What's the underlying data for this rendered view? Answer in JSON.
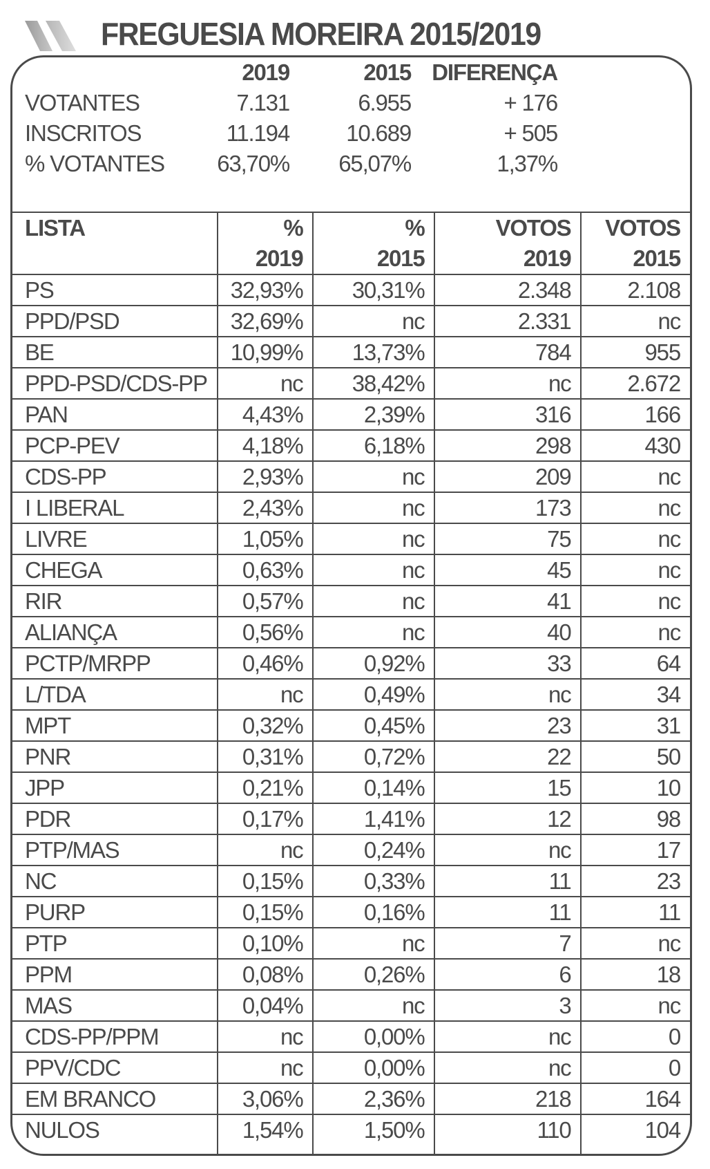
{
  "title": "FREGUESIA MOREIRA 2015/2019",
  "summary": {
    "headers": [
      "2019",
      "2015",
      "DIFERENÇA"
    ],
    "rows": [
      {
        "label": "VOTANTES",
        "v2019": "7.131",
        "v2015": "6.955",
        "diff": "+ 176"
      },
      {
        "label": "INSCRITOS",
        "v2019": "11.194",
        "v2015": "10.689",
        "diff": "+ 505"
      },
      {
        "label": "% VOTANTES",
        "v2019": "63,70%",
        "v2015": "65,07%",
        "diff": "1,37%"
      }
    ]
  },
  "table": {
    "headers": [
      {
        "line1": "LISTA",
        "line2": ""
      },
      {
        "line1": "%",
        "line2": "2019"
      },
      {
        "line1": "%",
        "line2": "2015"
      },
      {
        "line1": "VOTOS",
        "line2": "2019"
      },
      {
        "line1": "VOTOS",
        "line2": "2015"
      }
    ],
    "rows": [
      [
        "PS",
        "32,93%",
        "30,31%",
        "2.348",
        "2.108"
      ],
      [
        "PPD/PSD",
        "32,69%",
        "nc",
        "2.331",
        "nc"
      ],
      [
        "BE",
        "10,99%",
        "13,73%",
        "784",
        "955"
      ],
      [
        "PPD-PSD/CDS-PP",
        "nc",
        "38,42%",
        "nc",
        "2.672"
      ],
      [
        "PAN",
        "4,43%",
        "2,39%",
        "316",
        "166"
      ],
      [
        "PCP-PEV",
        "4,18%",
        "6,18%",
        "298",
        "430"
      ],
      [
        "CDS-PP",
        "2,93%",
        "nc",
        "209",
        "nc"
      ],
      [
        "I LIBERAL",
        "2,43%",
        "nc",
        "173",
        "nc"
      ],
      [
        "LIVRE",
        "1,05%",
        "nc",
        "75",
        "nc"
      ],
      [
        "CHEGA",
        "0,63%",
        "nc",
        "45",
        "nc"
      ],
      [
        "RIR",
        "0,57%",
        "nc",
        "41",
        "nc"
      ],
      [
        "ALIANÇA",
        "0,56%",
        "nc",
        "40",
        "nc"
      ],
      [
        "PCTP/MRPP",
        "0,46%",
        "0,92%",
        "33",
        "64"
      ],
      [
        "L/TDA",
        "nc",
        "0,49%",
        "nc",
        "34"
      ],
      [
        "MPT",
        "0,32%",
        "0,45%",
        "23",
        "31"
      ],
      [
        "PNR",
        "0,31%",
        "0,72%",
        "22",
        "50"
      ],
      [
        "JPP",
        "0,21%",
        "0,14%",
        "15",
        "10"
      ],
      [
        "PDR",
        "0,17%",
        "1,41%",
        "12",
        "98"
      ],
      [
        "PTP/MAS",
        "nc",
        "0,24%",
        "nc",
        "17"
      ],
      [
        "NC",
        "0,15%",
        "0,33%",
        "11",
        "23"
      ],
      [
        "PURP",
        "0,15%",
        "0,16%",
        "11",
        "11"
      ],
      [
        "PTP",
        "0,10%",
        "nc",
        "7",
        "nc"
      ],
      [
        "PPM",
        "0,08%",
        "0,26%",
        "6",
        "18"
      ],
      [
        "MAS",
        "0,04%",
        "nc",
        "3",
        "nc"
      ],
      [
        "CDS-PP/PPM",
        "nc",
        "0,00%",
        "nc",
        "0"
      ],
      [
        "PPV/CDC",
        "nc",
        "0,00%",
        "nc",
        "0"
      ],
      [
        "EM BRANCO",
        "3,06%",
        "2,36%",
        "218",
        "164"
      ],
      [
        "NULOS",
        "1,54%",
        "1,50%",
        "110",
        "104"
      ]
    ]
  }
}
